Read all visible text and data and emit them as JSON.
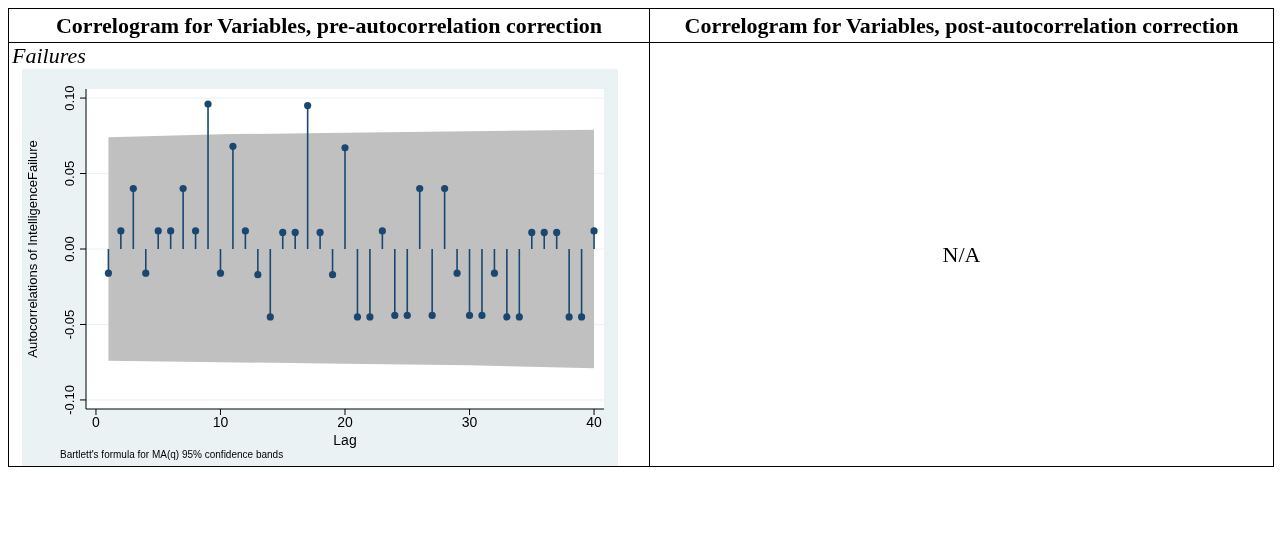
{
  "chart_data": {
    "type": "lollipop",
    "title": "Correlogram for Variables, pre-autocorrelation correction",
    "subtitle": "Failures",
    "xlabel": "Lag",
    "ylabel": "Autocorrelations of IntelligenceFailure",
    "annotations": [
      "Correlogram for Variables, post-autocorrelation correction",
      "N/A",
      "Bartlett's formula for MA(q) 95% confidence bands"
    ],
    "x": [
      1,
      2,
      3,
      4,
      5,
      6,
      7,
      8,
      9,
      10,
      11,
      12,
      13,
      14,
      15,
      16,
      17,
      18,
      19,
      20,
      21,
      22,
      23,
      24,
      25,
      26,
      27,
      28,
      29,
      30,
      31,
      32,
      33,
      34,
      35,
      36,
      37,
      38,
      39,
      40
    ],
    "series": [
      {
        "type": "area",
        "x": [
          1,
          10,
          20,
          30,
          40
        ],
        "values": [
          null,
          null,
          null,
          null,
          null
        ],
        "lower": [
          -0.074,
          -0.075,
          -0.076,
          -0.077,
          -0.079
        ],
        "upper": [
          0.074,
          0.076,
          0.077,
          0.078,
          0.079
        ],
        "color": "#c0c0c0"
      },
      {
        "color": "#1a476f",
        "values": [
          -0.016,
          0.012,
          0.04,
          -0.016,
          0.012,
          0.012,
          0.04,
          0.012,
          0.096,
          -0.016,
          0.068,
          0.012,
          -0.017,
          -0.045,
          0.011,
          0.011,
          0.095,
          0.011,
          -0.017,
          0.067,
          -0.045,
          -0.045,
          0.012,
          -0.044,
          -0.044,
          0.04,
          -0.044,
          0.04,
          -0.016,
          -0.044,
          -0.044,
          -0.016,
          -0.045,
          -0.045,
          0.011,
          0.011,
          0.011,
          -0.045,
          -0.045,
          0.012
        ]
      }
    ],
    "xlim": [
      -0.8,
      40.8
    ],
    "xticks": [
      0,
      10,
      20,
      30,
      40
    ],
    "ylim": [
      -0.106,
      0.106
    ],
    "yticks": [
      {
        "value": -0.1,
        "label": "-0.10"
      },
      {
        "value": -0.05,
        "label": "-0.05"
      },
      {
        "value": 0,
        "label": "0.00"
      },
      {
        "value": 0.05,
        "label": "0.05"
      },
      {
        "value": 0.1,
        "label": "0.10"
      }
    ],
    "grid": "y",
    "marker": "circle"
  }
}
